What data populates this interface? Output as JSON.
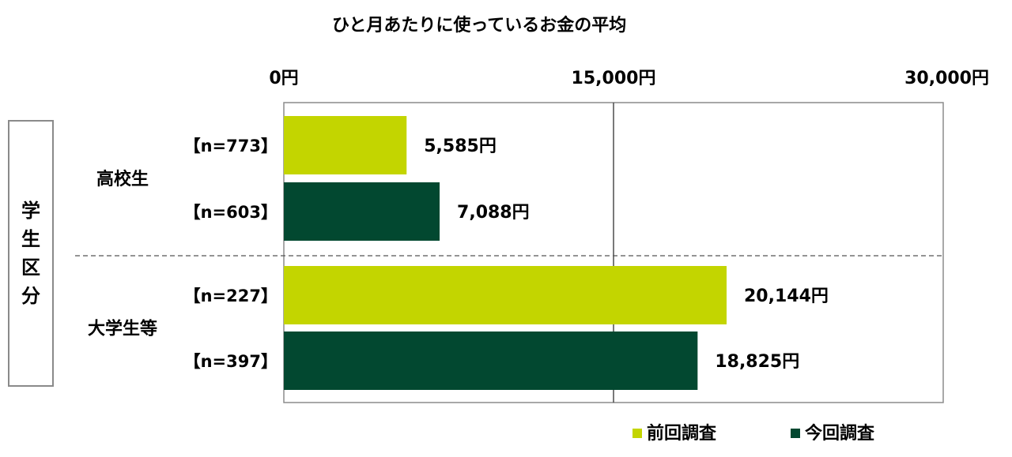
{
  "title": "ひと月あたりに使っているお金の平均",
  "y_axis_title": [
    "学",
    "生",
    "区",
    "分"
  ],
  "colors": {
    "previous": "#c3d500",
    "current": "#024830"
  },
  "chart_data": {
    "type": "bar",
    "orientation": "horizontal",
    "title": "ひと月あたりに使っているお金の平均",
    "xlim": [
      0,
      30000
    ],
    "x_ticks": [
      0,
      15000,
      30000
    ],
    "x_tick_labels": [
      "0円",
      "15,000円",
      "30,000円"
    ],
    "ylabel": "学生区分",
    "grid": "vertical",
    "legend_position": "bottom-right",
    "groups": [
      {
        "name": "高校生",
        "bars": [
          {
            "series": "前回調査",
            "n_label": "【n=773】",
            "value": 5585,
            "value_label": "5,585円"
          },
          {
            "series": "今回調査",
            "n_label": "【n=603】",
            "value": 7088,
            "value_label": "7,088円"
          }
        ]
      },
      {
        "name": "大学生等",
        "bars": [
          {
            "series": "前回調査",
            "n_label": "【n=227】",
            "value": 20144,
            "value_label": "20,144円"
          },
          {
            "series": "今回調査",
            "n_label": "【n=397】",
            "value": 18825,
            "value_label": "18,825円"
          }
        ]
      }
    ],
    "series": [
      {
        "name": "前回調査",
        "color": "#c3d500"
      },
      {
        "name": "今回調査",
        "color": "#024830"
      }
    ]
  }
}
